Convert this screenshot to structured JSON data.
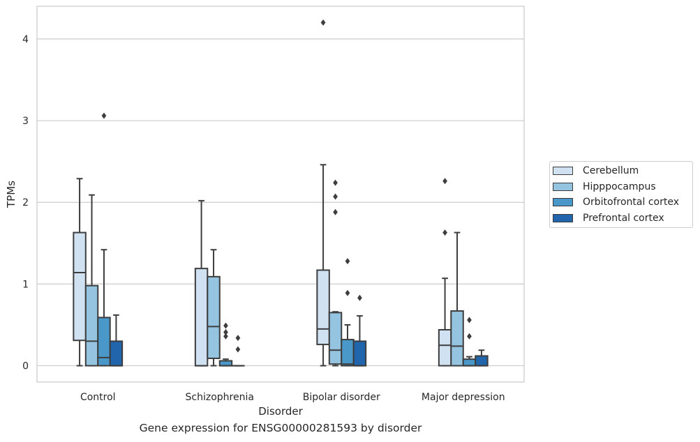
{
  "chart_data": {
    "type": "box",
    "title": "Gene expression for ENSG00000281593 by disorder",
    "xlabel": "Disorder",
    "ylabel": "TPMs",
    "ylim": [
      -0.2,
      4.4
    ],
    "yticks": [
      0,
      1,
      2,
      3,
      4
    ],
    "grid": "horizontal",
    "legend_position": "outside-right",
    "categories": [
      "Control",
      "Schizophrenia",
      "Bipolar disorder",
      "Major depression"
    ],
    "series": [
      {
        "name": "Cerebellum",
        "color": "#d0e1f2",
        "boxes": [
          {
            "whisker_low": 0.0,
            "q1": 0.31,
            "median": 1.14,
            "q3": 1.63,
            "whisker_high": 2.29,
            "outliers": []
          },
          {
            "whisker_low": 0.0,
            "q1": 0.0,
            "median": 0.0,
            "q3": 1.19,
            "whisker_high": 2.02,
            "outliers": []
          },
          {
            "whisker_low": 0.0,
            "q1": 0.26,
            "median": 0.45,
            "q3": 1.17,
            "whisker_high": 2.46,
            "outliers": [
              4.2
            ]
          },
          {
            "whisker_low": 0.0,
            "q1": 0.0,
            "median": 0.25,
            "q3": 0.44,
            "whisker_high": 1.07,
            "outliers": [
              1.63,
              2.26
            ]
          }
        ]
      },
      {
        "name": "Hipppocampus",
        "color": "#94c4df",
        "boxes": [
          {
            "whisker_low": 0.0,
            "q1": 0.0,
            "median": 0.3,
            "q3": 0.98,
            "whisker_high": 2.09,
            "outliers": []
          },
          {
            "whisker_low": 0.0,
            "q1": 0.09,
            "median": 0.48,
            "q3": 1.09,
            "whisker_high": 1.42,
            "outliers": []
          },
          {
            "whisker_low": 0.0,
            "q1": 0.02,
            "median": 0.19,
            "q3": 0.65,
            "whisker_high": 0.66,
            "outliers": [
              1.88,
              2.07,
              2.24
            ]
          },
          {
            "whisker_low": 0.0,
            "q1": 0.0,
            "median": 0.24,
            "q3": 0.67,
            "whisker_high": 1.63,
            "outliers": []
          }
        ]
      },
      {
        "name": "Orbitofrontal cortex",
        "color": "#4a98c9",
        "boxes": [
          {
            "whisker_low": 0.0,
            "q1": 0.0,
            "median": 0.1,
            "q3": 0.59,
            "whisker_high": 1.42,
            "outliers": [
              3.06
            ]
          },
          {
            "whisker_low": 0.0,
            "q1": 0.0,
            "median": 0.0,
            "q3": 0.06,
            "whisker_high": 0.08,
            "outliers": [
              0.36,
              0.41,
              0.49
            ]
          },
          {
            "whisker_low": 0.0,
            "q1": 0.0,
            "median": 0.02,
            "q3": 0.32,
            "whisker_high": 0.5,
            "outliers": [
              0.89,
              1.28
            ]
          },
          {
            "whisker_low": 0.0,
            "q1": 0.0,
            "median": 0.0,
            "q3": 0.08,
            "whisker_high": 0.11,
            "outliers": [
              0.36,
              0.56
            ]
          }
        ]
      },
      {
        "name": "Prefrontal cortex",
        "color": "#2166ac",
        "boxes": [
          {
            "whisker_low": 0.0,
            "q1": 0.0,
            "median": 0.0,
            "q3": 0.3,
            "whisker_high": 0.62,
            "outliers": []
          },
          {
            "whisker_low": 0.0,
            "q1": 0.0,
            "median": 0.0,
            "q3": 0.0,
            "whisker_high": 0.0,
            "outliers": [
              0.2,
              0.34
            ]
          },
          {
            "whisker_low": 0.0,
            "q1": 0.0,
            "median": 0.0,
            "q3": 0.3,
            "whisker_high": 0.61,
            "outliers": [
              0.83
            ]
          },
          {
            "whisker_low": 0.0,
            "q1": 0.0,
            "median": 0.0,
            "q3": 0.12,
            "whisker_high": 0.19,
            "outliers": []
          }
        ]
      }
    ]
  }
}
